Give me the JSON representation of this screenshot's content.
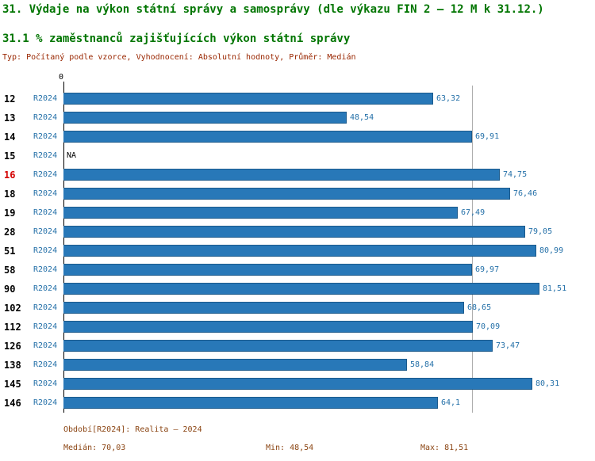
{
  "header": {
    "title": "31. Výdaje na výkon státní správy a samosprávy (dle výkazu FIN 2 – 12 M k 31.12.)",
    "subtitle": "31.1 % zaměstnanců zajišťujících výkon státní správy",
    "meta": "Typ: Počítaný podle vzorce, Vyhodnocení: Absolutní hodnoty, Průměr: Medián"
  },
  "chart_data": {
    "type": "bar",
    "orientation": "horizontal",
    "x_origin_label": "0",
    "xlim": [
      0,
      81.51
    ],
    "median_line": 70.03,
    "grid": "median-only",
    "rows": [
      {
        "code": "12",
        "period": "R2024",
        "value": 63.32,
        "label": "63,32",
        "highlight": false,
        "na": false
      },
      {
        "code": "13",
        "period": "R2024",
        "value": 48.54,
        "label": "48,54",
        "highlight": false,
        "na": false
      },
      {
        "code": "14",
        "period": "R2024",
        "value": 69.91,
        "label": "69,91",
        "highlight": false,
        "na": false
      },
      {
        "code": "15",
        "period": "R2024",
        "value": null,
        "label": "NA",
        "highlight": false,
        "na": true
      },
      {
        "code": "16",
        "period": "R2024",
        "value": 74.75,
        "label": "74,75",
        "highlight": true,
        "na": false
      },
      {
        "code": "18",
        "period": "R2024",
        "value": 76.46,
        "label": "76,46",
        "highlight": false,
        "na": false
      },
      {
        "code": "19",
        "period": "R2024",
        "value": 67.49,
        "label": "67,49",
        "highlight": false,
        "na": false
      },
      {
        "code": "28",
        "period": "R2024",
        "value": 79.05,
        "label": "79,05",
        "highlight": false,
        "na": false
      },
      {
        "code": "51",
        "period": "R2024",
        "value": 80.99,
        "label": "80,99",
        "highlight": false,
        "na": false
      },
      {
        "code": "58",
        "period": "R2024",
        "value": 69.97,
        "label": "69,97",
        "highlight": false,
        "na": false
      },
      {
        "code": "90",
        "period": "R2024",
        "value": 81.51,
        "label": "81,51",
        "highlight": false,
        "na": false
      },
      {
        "code": "102",
        "period": "R2024",
        "value": 68.65,
        "label": "68,65",
        "highlight": false,
        "na": false
      },
      {
        "code": "112",
        "period": "R2024",
        "value": 70.09,
        "label": "70,09",
        "highlight": false,
        "na": false
      },
      {
        "code": "126",
        "period": "R2024",
        "value": 73.47,
        "label": "73,47",
        "highlight": false,
        "na": false
      },
      {
        "code": "138",
        "period": "R2024",
        "value": 58.84,
        "label": "58,84",
        "highlight": false,
        "na": false
      },
      {
        "code": "145",
        "period": "R2024",
        "value": 80.31,
        "label": "80,31",
        "highlight": false,
        "na": false
      },
      {
        "code": "146",
        "period": "R2024",
        "value": 64.1,
        "label": "64,1",
        "highlight": false,
        "na": false
      }
    ]
  },
  "footer": {
    "period_line": "Období[R2024]: Realita – 2024",
    "median_label": "Medián: 70,03",
    "min_label": "Min: 48,54",
    "max_label": "Max: 81,51"
  },
  "colors": {
    "title_green": "#007500",
    "meta_red": "#992600",
    "footer_brown": "#8b4513",
    "bar_fill": "#2878b8",
    "bar_border": "#1b5a8c",
    "label_blue": "#2470a8",
    "highlight_red": "#d40000",
    "median_line": "#adadad"
  }
}
